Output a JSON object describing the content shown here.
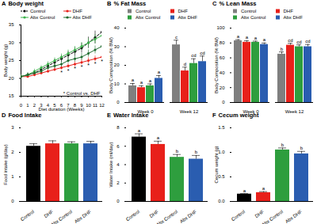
{
  "chart_data": [
    {
      "panel": "A",
      "type": "line",
      "title": "Body weight",
      "x_label": "Diet duration (Weeks)",
      "y_label": "Body weight (g)",
      "x": [
        0,
        1,
        2,
        3,
        4,
        5,
        6,
        7,
        8,
        9,
        10,
        11,
        12
      ],
      "xlim": [
        0,
        12
      ],
      "xticks": [
        0,
        1,
        2,
        3,
        4,
        5,
        6,
        7,
        8,
        9,
        10,
        11,
        12
      ],
      "ylim": [
        15,
        35
      ],
      "yticks": [
        15,
        20,
        25,
        30,
        35
      ],
      "legend": "top-left",
      "annotation": "* Control vs. DHF",
      "sig_x": [
        6,
        7,
        8,
        9,
        10,
        11,
        12
      ],
      "sig_labels": [
        "*",
        "*",
        "*",
        "*",
        "*",
        "*",
        "*"
      ],
      "series": [
        {
          "name": "Control",
          "color": "#000000",
          "line_style": "dashed",
          "marker": "circle",
          "values": [
            20.5,
            21,
            21.5,
            22.5,
            23.5,
            24.5,
            25.5,
            26.5,
            27.5,
            28.5,
            30,
            31.5,
            33
          ],
          "errors": [
            0.5,
            0.5,
            0.6,
            0.7,
            0.8,
            0.9,
            1,
            1.1,
            1.2,
            1.4,
            1.6,
            1.8,
            2
          ]
        },
        {
          "name": "DHF",
          "color": "#e8201a",
          "line_style": "solid",
          "marker": "circle",
          "values": [
            20.5,
            20.5,
            21,
            21.5,
            22,
            22.5,
            23,
            23.5,
            24,
            24.5,
            25,
            25.5,
            26
          ],
          "errors": [
            0.4,
            0.4,
            0.5,
            0.5,
            0.5,
            0.6,
            0.6,
            0.6,
            0.7,
            0.7,
            0.8,
            0.8,
            0.9
          ]
        },
        {
          "name": "Abx Control",
          "color": "#3cb44b",
          "line_style": "solid",
          "marker": "circle",
          "values": [
            20.5,
            21,
            22,
            23,
            24,
            25,
            26,
            27,
            28,
            29,
            30,
            31,
            32
          ],
          "errors": [
            0.5,
            0.5,
            0.6,
            0.6,
            0.7,
            0.8,
            0.9,
            1,
            1,
            1.1,
            1.2,
            1.3,
            1.5
          ]
        },
        {
          "name": "Abx DHF",
          "color": "#1e6b2e",
          "line_style": "solid",
          "marker": "circle",
          "values": [
            20.5,
            21,
            21.5,
            22,
            23,
            23.5,
            24,
            25,
            25.5,
            26,
            27,
            28,
            29
          ],
          "errors": [
            0.5,
            0.5,
            0.5,
            0.6,
            0.6,
            0.7,
            0.8,
            0.8,
            0.9,
            1,
            1,
            1.1,
            1.2
          ]
        }
      ]
    },
    {
      "panel": "B",
      "type": "bar",
      "title": "% Fat Mass",
      "y_label": "Body Composition (% BW)",
      "categories": [
        "Week 0",
        "Week 12"
      ],
      "ylim": [
        0,
        40
      ],
      "yticks": [
        0,
        10,
        20,
        30,
        40
      ],
      "legend": "top-left",
      "series": [
        {
          "name": "Control",
          "color": "#7f7f7f",
          "values": [
            9,
            31
          ],
          "errors": [
            1.2,
            2.5
          ],
          "letters": [
            "a",
            "c"
          ]
        },
        {
          "name": "DHF",
          "color": "#e8201a",
          "values": [
            8,
            17
          ],
          "errors": [
            1,
            2
          ],
          "letters": [
            "a",
            "d"
          ]
        },
        {
          "name": "Abx Control",
          "color": "#2e9e3e",
          "values": [
            9,
            21
          ],
          "errors": [
            1,
            2.5
          ],
          "letters": [
            "a",
            "cd"
          ]
        },
        {
          "name": "Abx DHF",
          "color": "#2a5db0",
          "values": [
            13,
            22
          ],
          "errors": [
            1.5,
            3
          ],
          "letters": [
            "a",
            "cd"
          ]
        }
      ]
    },
    {
      "panel": "C",
      "type": "bar",
      "title": "% Lean Mass",
      "y_label": "Body Composition (% BW)",
      "categories": [
        "Week 0",
        "Week 12"
      ],
      "ylim": [
        0,
        100
      ],
      "yticks": [
        0,
        20,
        40,
        60,
        80,
        100
      ],
      "legend": "top-left",
      "series": [
        {
          "name": "Control",
          "color": "#7f7f7f",
          "values": [
            83,
            65
          ],
          "errors": [
            1.5,
            3
          ],
          "letters": [
            "a",
            "b"
          ]
        },
        {
          "name": "DHF",
          "color": "#e8201a",
          "values": [
            81,
            77
          ],
          "errors": [
            2,
            2.5
          ],
          "letters": [
            "a",
            "cd"
          ]
        },
        {
          "name": "Abx Control",
          "color": "#2e9e3e",
          "values": [
            81,
            75
          ],
          "errors": [
            1.5,
            2.5
          ],
          "letters": [
            "a",
            "cd"
          ]
        },
        {
          "name": "Abx DHF",
          "color": "#2a5db0",
          "values": [
            78,
            75
          ],
          "errors": [
            2,
            3
          ],
          "letters": [
            "a",
            "cd"
          ]
        }
      ]
    },
    {
      "panel": "D",
      "type": "bar",
      "title": "Food Intake",
      "y_label": "Food intake (g/day)",
      "categories": [
        "Control",
        "DHF",
        "Abx Control",
        "Abx DHF"
      ],
      "values": [
        2.25,
        2.35,
        2.35,
        2.35
      ],
      "errors": [
        0.1,
        0.12,
        0.08,
        0.1
      ],
      "colors": [
        "#000000",
        "#e8201a",
        "#2e9e3e",
        "#2a5db0"
      ],
      "ylim": [
        0,
        3
      ],
      "yticks": [
        0,
        1,
        2,
        3
      ]
    },
    {
      "panel": "E",
      "type": "bar",
      "title": "Water Intake",
      "y_label": "Water Intake (ml/day)",
      "categories": [
        "Control",
        "DHF",
        "Abx Control",
        "Abx DHF"
      ],
      "values": [
        7,
        6.2,
        4.8,
        4.6
      ],
      "errors": [
        0.35,
        0.35,
        0.3,
        0.4
      ],
      "letters": [
        "a",
        "a",
        "b",
        "b"
      ],
      "colors": [
        "#000000",
        "#e8201a",
        "#2e9e3e",
        "#2a5db0"
      ],
      "ylim": [
        0,
        8
      ],
      "yticks": [
        0,
        2,
        4,
        6,
        8
      ]
    },
    {
      "panel": "F",
      "type": "bar",
      "title": "Cecum weight",
      "y_label": "Cecum weight (g)",
      "categories": [
        "Control",
        "DHF",
        "Abx Control",
        "Abx DHF"
      ],
      "values": [
        0.15,
        0.18,
        1.05,
        0.97
      ],
      "errors": [
        0.01,
        0.02,
        0.04,
        0.05
      ],
      "letters": [
        "a",
        "a",
        "b",
        "b"
      ],
      "colors": [
        "#000000",
        "#e8201a",
        "#2e9e3e",
        "#2a5db0"
      ],
      "ylim": [
        0,
        1.5
      ],
      "yticks": [
        {
          "value": 0,
          "label": "0.0"
        },
        0.5,
        {
          "value": 1,
          "label": "1.0"
        },
        1.5
      ]
    }
  ]
}
